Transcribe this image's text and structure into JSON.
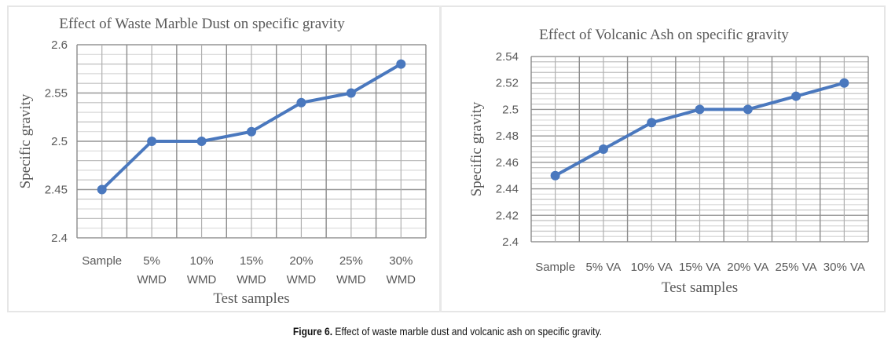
{
  "colors": {
    "series": "#4a78be",
    "major_grid": "#9a9a9a",
    "minor_grid": "#cfcfcf",
    "text": "#595959"
  },
  "figure_caption": {
    "label": "Figure 6.",
    "text": " Effect of waste marble dust and volcanic ash on specific gravity."
  },
  "chart_data": [
    {
      "type": "line",
      "title": "Effect of Waste Marble Dust on specific gravity",
      "xlabel": "Test samples",
      "ylabel": "Specific gravity",
      "categories": [
        [
          "Sample"
        ],
        [
          "5%",
          "WMD"
        ],
        [
          "10%",
          "WMD"
        ],
        [
          "15%",
          "WMD"
        ],
        [
          "20%",
          "WMD"
        ],
        [
          "25%",
          "WMD"
        ],
        [
          "30%",
          "WMD"
        ]
      ],
      "series": [
        {
          "name": "Specific gravity",
          "values": [
            2.45,
            2.5,
            2.5,
            2.51,
            2.54,
            2.55,
            2.58
          ]
        }
      ],
      "ylim": [
        2.4,
        2.6
      ],
      "yticks": [
        "2.4",
        "2.45",
        "2.5",
        "2.55",
        "2.6"
      ],
      "major_step": 0.05,
      "minor_step": 0.01,
      "grid": true,
      "legend": "none"
    },
    {
      "type": "line",
      "title": "Effect of Volcanic Ash on specific gravity",
      "xlabel": "Test samples",
      "ylabel": "Specific gravity",
      "categories": [
        [
          "Sample"
        ],
        [
          "5% VA"
        ],
        [
          "10% VA"
        ],
        [
          "15% VA"
        ],
        [
          "20% VA"
        ],
        [
          "25% VA"
        ],
        [
          "30% VA"
        ]
      ],
      "series": [
        {
          "name": "Specific gravity",
          "values": [
            2.45,
            2.47,
            2.49,
            2.5,
            2.5,
            2.51,
            2.52
          ]
        }
      ],
      "ylim": [
        2.4,
        2.54
      ],
      "yticks": [
        "2.4",
        "2.42",
        "2.44",
        "2.46",
        "2.48",
        "2.5",
        "2.52",
        "2.54"
      ],
      "major_step": 0.02,
      "minor_step": 0.004,
      "grid": true,
      "legend": "none"
    }
  ]
}
